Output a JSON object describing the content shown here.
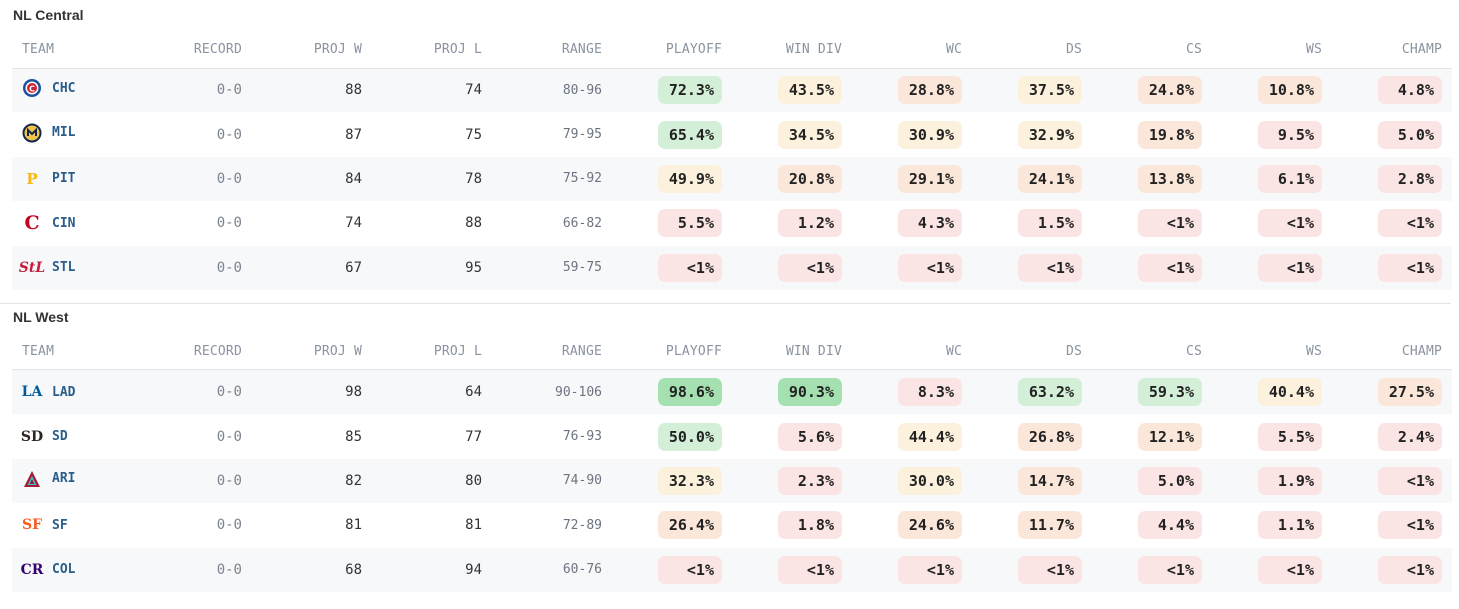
{
  "columns": [
    "TEAM",
    "RECORD",
    "PROJ W",
    "PROJ L",
    "RANGE",
    "PLAYOFF",
    "WIN DIV",
    "WC",
    "DS",
    "CS",
    "WS",
    "CHAMP"
  ],
  "tier_colors": {
    "g1": "#a5e0b0",
    "g2": "#d4efd8",
    "y": "#fbf1dc",
    "o": "#fbe6da",
    "r": "#fae4e4"
  },
  "divisions": [
    {
      "title": "NL Central",
      "teams": [
        {
          "abbr": "CHC",
          "logo": "cubs-logo",
          "record": "0-0",
          "proj_w": "88",
          "proj_l": "74",
          "range": "80-96",
          "playoff": "72.3%",
          "win_div": "43.5%",
          "wc": "28.8%",
          "ds": "37.5%",
          "cs": "24.8%",
          "ws": "10.8%",
          "champ": "4.8%"
        },
        {
          "abbr": "MIL",
          "logo": "brewers-logo",
          "record": "0-0",
          "proj_w": "87",
          "proj_l": "75",
          "range": "79-95",
          "playoff": "65.4%",
          "win_div": "34.5%",
          "wc": "30.9%",
          "ds": "32.9%",
          "cs": "19.8%",
          "ws": "9.5%",
          "champ": "5.0%"
        },
        {
          "abbr": "PIT",
          "logo": "pirates-logo",
          "record": "0-0",
          "proj_w": "84",
          "proj_l": "78",
          "range": "75-92",
          "playoff": "49.9%",
          "win_div": "20.8%",
          "wc": "29.1%",
          "ds": "24.1%",
          "cs": "13.8%",
          "ws": "6.1%",
          "champ": "2.8%"
        },
        {
          "abbr": "CIN",
          "logo": "reds-logo",
          "record": "0-0",
          "proj_w": "74",
          "proj_l": "88",
          "range": "66-82",
          "playoff": "5.5%",
          "win_div": "1.2%",
          "wc": "4.3%",
          "ds": "1.5%",
          "cs": "<1%",
          "ws": "<1%",
          "champ": "<1%"
        },
        {
          "abbr": "STL",
          "logo": "cardinals-logo",
          "record": "0-0",
          "proj_w": "67",
          "proj_l": "95",
          "range": "59-75",
          "playoff": "<1%",
          "win_div": "<1%",
          "wc": "<1%",
          "ds": "<1%",
          "cs": "<1%",
          "ws": "<1%",
          "champ": "<1%"
        }
      ]
    },
    {
      "title": "NL West",
      "teams": [
        {
          "abbr": "LAD",
          "logo": "dodgers-logo",
          "record": "0-0",
          "proj_w": "98",
          "proj_l": "64",
          "range": "90-106",
          "playoff": "98.6%",
          "win_div": "90.3%",
          "wc": "8.3%",
          "ds": "63.2%",
          "cs": "59.3%",
          "ws": "40.4%",
          "champ": "27.5%"
        },
        {
          "abbr": "SD",
          "logo": "padres-logo",
          "record": "0-0",
          "proj_w": "85",
          "proj_l": "77",
          "range": "76-93",
          "playoff": "50.0%",
          "win_div": "5.6%",
          "wc": "44.4%",
          "ds": "26.8%",
          "cs": "12.1%",
          "ws": "5.5%",
          "champ": "2.4%"
        },
        {
          "abbr": "ARI",
          "logo": "diamondbacks-logo",
          "record": "0-0",
          "proj_w": "82",
          "proj_l": "80",
          "range": "74-90",
          "playoff": "32.3%",
          "win_div": "2.3%",
          "wc": "30.0%",
          "ds": "14.7%",
          "cs": "5.0%",
          "ws": "1.9%",
          "champ": "<1%"
        },
        {
          "abbr": "SF",
          "logo": "giants-logo",
          "record": "0-0",
          "proj_w": "81",
          "proj_l": "81",
          "range": "72-89",
          "playoff": "26.4%",
          "win_div": "1.8%",
          "wc": "24.6%",
          "ds": "11.7%",
          "cs": "4.4%",
          "ws": "1.1%",
          "champ": "<1%"
        },
        {
          "abbr": "COL",
          "logo": "rockies-logo",
          "record": "0-0",
          "proj_w": "68",
          "proj_l": "94",
          "range": "60-76",
          "playoff": "<1%",
          "win_div": "<1%",
          "wc": "<1%",
          "ds": "<1%",
          "cs": "<1%",
          "ws": "<1%",
          "champ": "<1%"
        }
      ]
    }
  ]
}
